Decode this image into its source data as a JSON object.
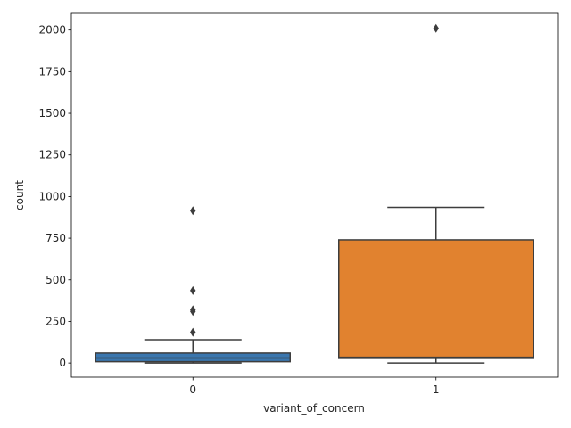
{
  "chart_data": {
    "type": "box",
    "title": "",
    "xlabel": "variant_of_concern",
    "ylabel": "count",
    "ylim": [
      -85,
      2100
    ],
    "yticks": [
      0,
      250,
      500,
      750,
      1000,
      1250,
      1500,
      1750,
      2000
    ],
    "ytick_labels": [
      "0",
      "250",
      "500",
      "750",
      "1000",
      "1250",
      "1500",
      "1750",
      "2000"
    ],
    "grid": false,
    "categories": [
      "0",
      "1"
    ],
    "boxes": [
      {
        "category": "0",
        "color": "#3a76ae",
        "whisker_low": 0,
        "q1": 8,
        "median": 30,
        "q3": 60,
        "whisker_high": 140,
        "outliers": [
          185,
          310,
          320,
          435,
          915
        ]
      },
      {
        "category": "1",
        "color": "#e1822f",
        "whisker_low": 0,
        "q1": 28,
        "median": 35,
        "q3": 740,
        "whisker_high": 935,
        "outliers": [
          2010
        ]
      }
    ],
    "colors": {
      "line": "#3d3d3d",
      "axis": "#000000",
      "text": "#262626"
    }
  }
}
